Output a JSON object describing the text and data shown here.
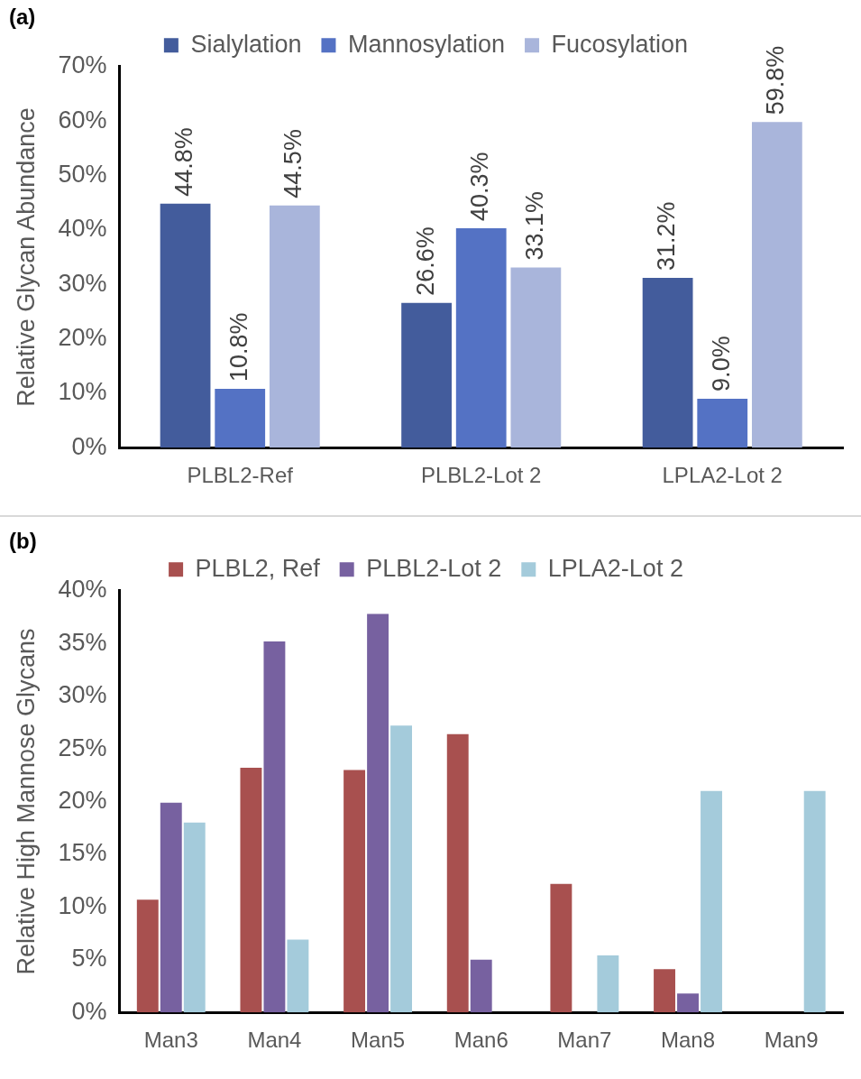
{
  "chart_data": [
    {
      "type": "bar",
      "title": "(a)",
      "ylabel": "Relative Glycan Abundance",
      "categories": [
        "PLBL2-Ref",
        "PLBL2-Lot 2",
        "LPLA2-Lot 2"
      ],
      "series": [
        {
          "name": "Sialylation",
          "color": "#435c9c",
          "values": [
            44.8,
            26.6,
            31.2
          ],
          "value_labels": [
            "44.8%",
            "26.6%",
            "31.2%"
          ]
        },
        {
          "name": "Mannosylation",
          "color": "#5472c4",
          "values": [
            10.8,
            40.3,
            9.0
          ],
          "value_labels": [
            "10.8%",
            "40.3%",
            "9.0%"
          ]
        },
        {
          "name": "Fucosylation",
          "color": "#a9b5db",
          "values": [
            44.5,
            33.1,
            59.8
          ],
          "value_labels": [
            "44.5%",
            "33.1%",
            "59.8%"
          ]
        }
      ],
      "ylim": [
        0,
        70
      ],
      "yticks": [
        {
          "value": 0,
          "label": "0%"
        },
        {
          "value": 10,
          "label": "10%"
        },
        {
          "value": 20,
          "label": "20%"
        },
        {
          "value": 30,
          "label": "30%"
        },
        {
          "value": 40,
          "label": "40%"
        },
        {
          "value": 50,
          "label": "50%"
        },
        {
          "value": 60,
          "label": "60%"
        },
        {
          "value": 70,
          "label": "70%"
        }
      ],
      "grid": false,
      "legend": "top"
    },
    {
      "type": "bar",
      "title": "(b)",
      "ylabel": "Relative High Mannose Glycans",
      "categories": [
        "Man3",
        "Man4",
        "Man5",
        "Man6",
        "Man7",
        "Man8",
        "Man9"
      ],
      "series": [
        {
          "name": "PLBL2, Ref",
          "color": "#a8504f",
          "values": [
            10.7,
            23.2,
            23.0,
            26.4,
            12.2,
            4.1,
            0
          ]
        },
        {
          "name": "PLBL2-Lot 2",
          "color": "#7761a0",
          "values": [
            19.9,
            35.2,
            37.8,
            5.0,
            0,
            1.8,
            0
          ]
        },
        {
          "name": "LPLA2-Lot 2",
          "color": "#a4cbdb",
          "values": [
            18.0,
            6.9,
            27.2,
            0,
            5.4,
            21.0,
            21.0
          ]
        }
      ],
      "ylim": [
        0,
        40
      ],
      "yticks": [
        {
          "value": 0,
          "label": "0%"
        },
        {
          "value": 5,
          "label": "5%"
        },
        {
          "value": 10,
          "label": "10%"
        },
        {
          "value": 15,
          "label": "15%"
        },
        {
          "value": 20,
          "label": "20%"
        },
        {
          "value": 25,
          "label": "25%"
        },
        {
          "value": 30,
          "label": "30%"
        },
        {
          "value": 35,
          "label": "35%"
        },
        {
          "value": 40,
          "label": "40%"
        }
      ],
      "grid": false,
      "legend": "top"
    }
  ]
}
